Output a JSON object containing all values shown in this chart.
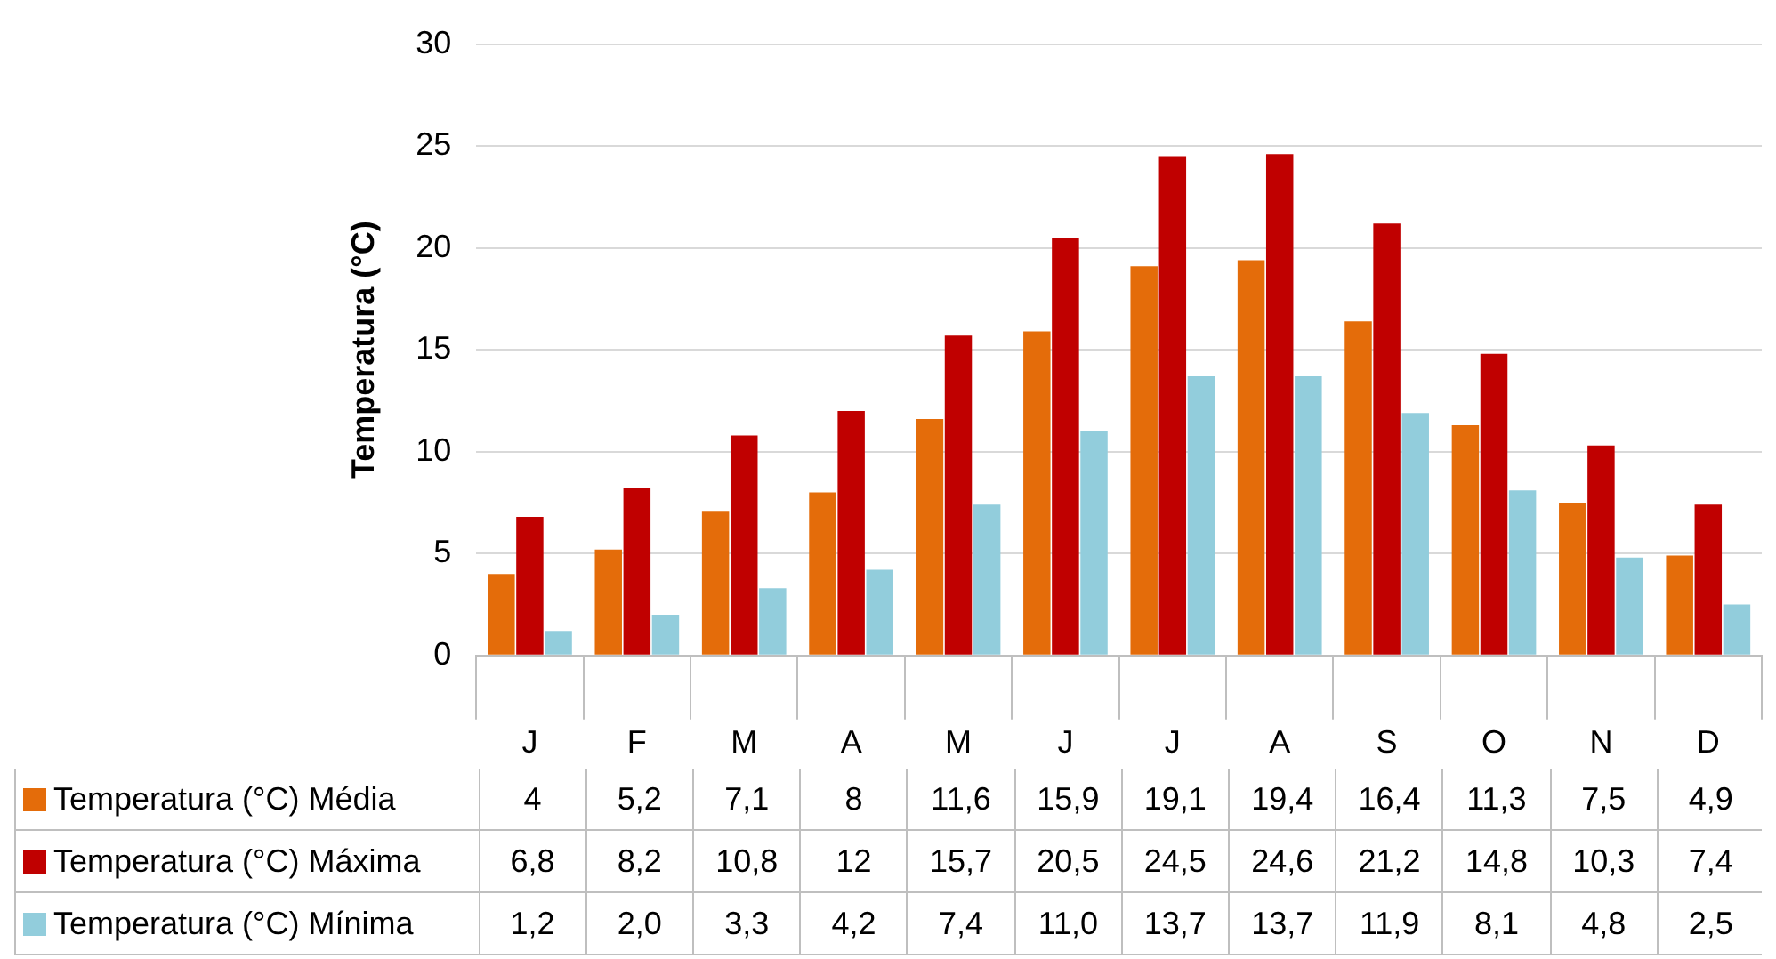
{
  "chart_data": {
    "type": "bar",
    "ylabel": "Temperatura (°C)",
    "categories": [
      "J",
      "F",
      "M",
      "A",
      "M",
      "J",
      "J",
      "A",
      "S",
      "O",
      "N",
      "D"
    ],
    "series": [
      {
        "name": "Temperatura (°C) Média",
        "color": "#e46c0a",
        "values": [
          4,
          5.2,
          7.1,
          8,
          11.6,
          15.9,
          19.1,
          19.4,
          16.4,
          11.3,
          7.5,
          4.9
        ],
        "value_labels": [
          "4",
          "5,2",
          "7,1",
          "8",
          "11,6",
          "15,9",
          "19,1",
          "19,4",
          "16,4",
          "11,3",
          "7,5",
          "4,9"
        ]
      },
      {
        "name": "Temperatura (°C) Máxima",
        "color": "#c00000",
        "values": [
          6.8,
          8.2,
          10.8,
          12,
          15.7,
          20.5,
          24.5,
          24.6,
          21.2,
          14.8,
          10.3,
          7.4
        ],
        "value_labels": [
          "6,8",
          "8,2",
          "10,8",
          "12",
          "15,7",
          "20,5",
          "24,5",
          "24,6",
          "21,2",
          "14,8",
          "10,3",
          "7,4"
        ]
      },
      {
        "name": "Temperatura (°C) Mínima",
        "color": "#92cddc",
        "values": [
          1.2,
          2.0,
          3.3,
          4.2,
          7.4,
          11.0,
          13.7,
          13.7,
          11.9,
          8.1,
          4.8,
          2.5
        ],
        "value_labels": [
          "1,2",
          "2,0",
          "3,3",
          "4,2",
          "7,4",
          "11,0",
          "13,7",
          "13,7",
          "11,9",
          "8,1",
          "4,8",
          "2,5"
        ]
      }
    ],
    "ylim": [
      0,
      30
    ],
    "yticks": [
      0,
      5,
      10,
      15,
      20,
      25,
      30
    ],
    "grid": "y",
    "legend": "bottom"
  }
}
